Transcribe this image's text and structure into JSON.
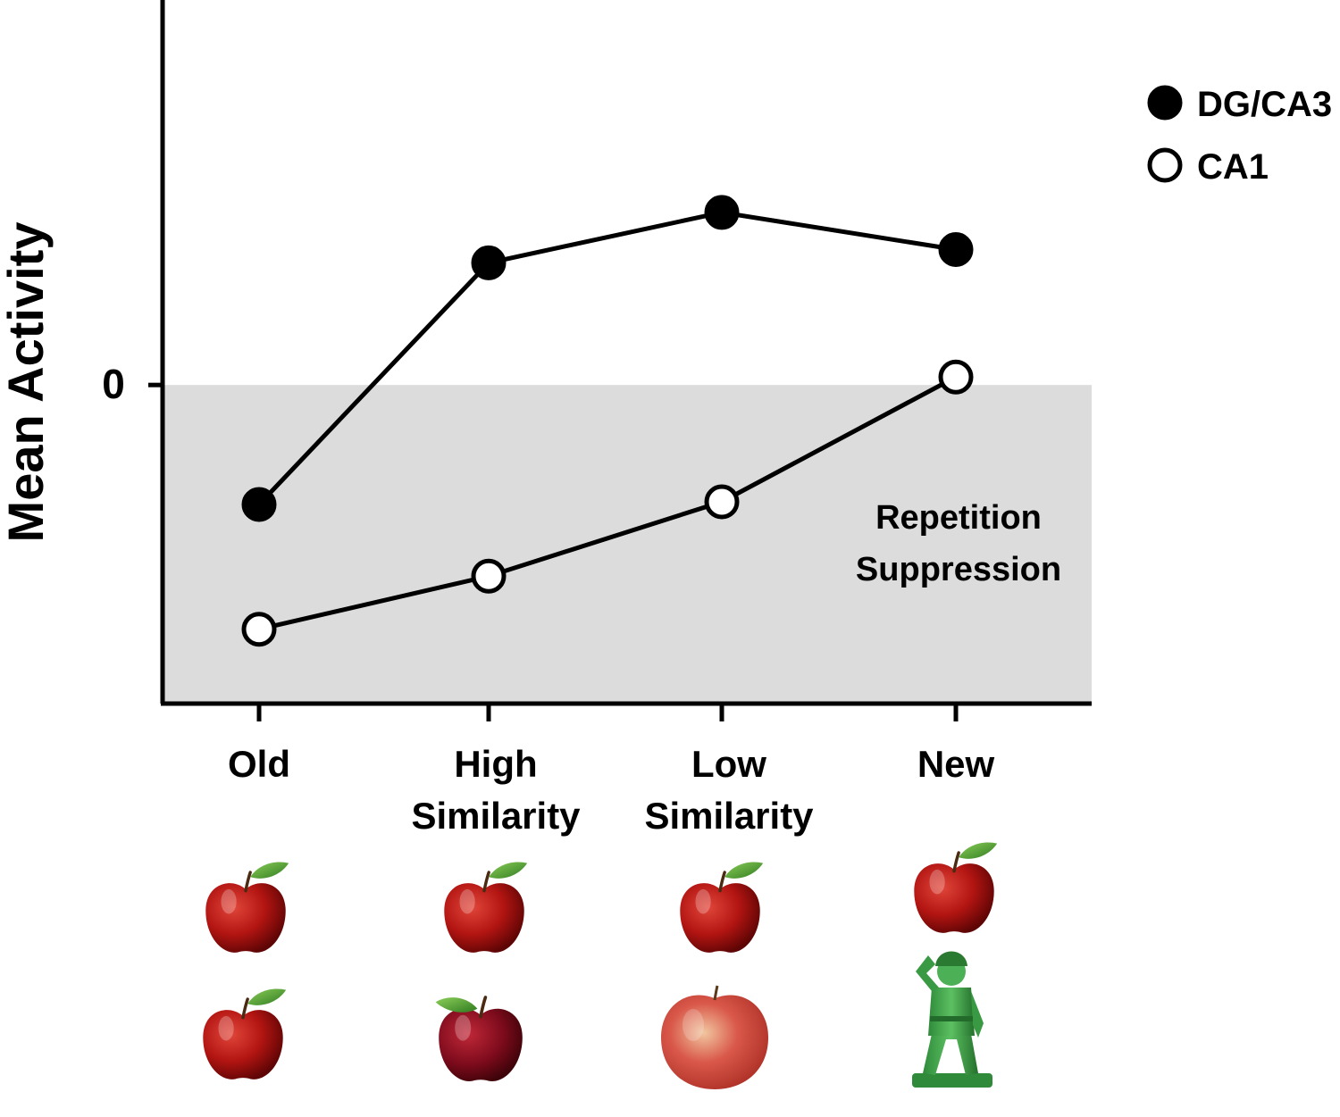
{
  "chart_data": {
    "type": "line",
    "ylabel": "Mean Activity",
    "yticks": [
      {
        "value": 0,
        "label": "0"
      }
    ],
    "ylim": [
      -1.2,
      1.45
    ],
    "categories": [
      [
        "Old"
      ],
      [
        "High",
        "Similarity"
      ],
      [
        "Low",
        "Similarity"
      ],
      [
        "New"
      ]
    ],
    "series": [
      {
        "name": "DG/CA3",
        "marker": "filled",
        "values": [
          -0.45,
          0.46,
          0.65,
          0.51
        ]
      },
      {
        "name": "CA1",
        "marker": "open",
        "values": [
          -0.92,
          -0.72,
          -0.44,
          0.03
        ]
      }
    ],
    "shaded_region": {
      "from": -1.2,
      "to": 0,
      "color": "#dcdcdc",
      "label": [
        "Repetition",
        "Suppression"
      ]
    },
    "legend_position": "top-right",
    "grid": false
  },
  "stimuli": {
    "Old": [
      "apple-icon",
      "apple-icon"
    ],
    "High Similarity": [
      "apple-icon",
      "apple-icon"
    ],
    "Low Similarity": [
      "apple-icon",
      "apple-icon"
    ],
    "New": [
      "apple-icon",
      "toy-soldier-icon"
    ]
  }
}
